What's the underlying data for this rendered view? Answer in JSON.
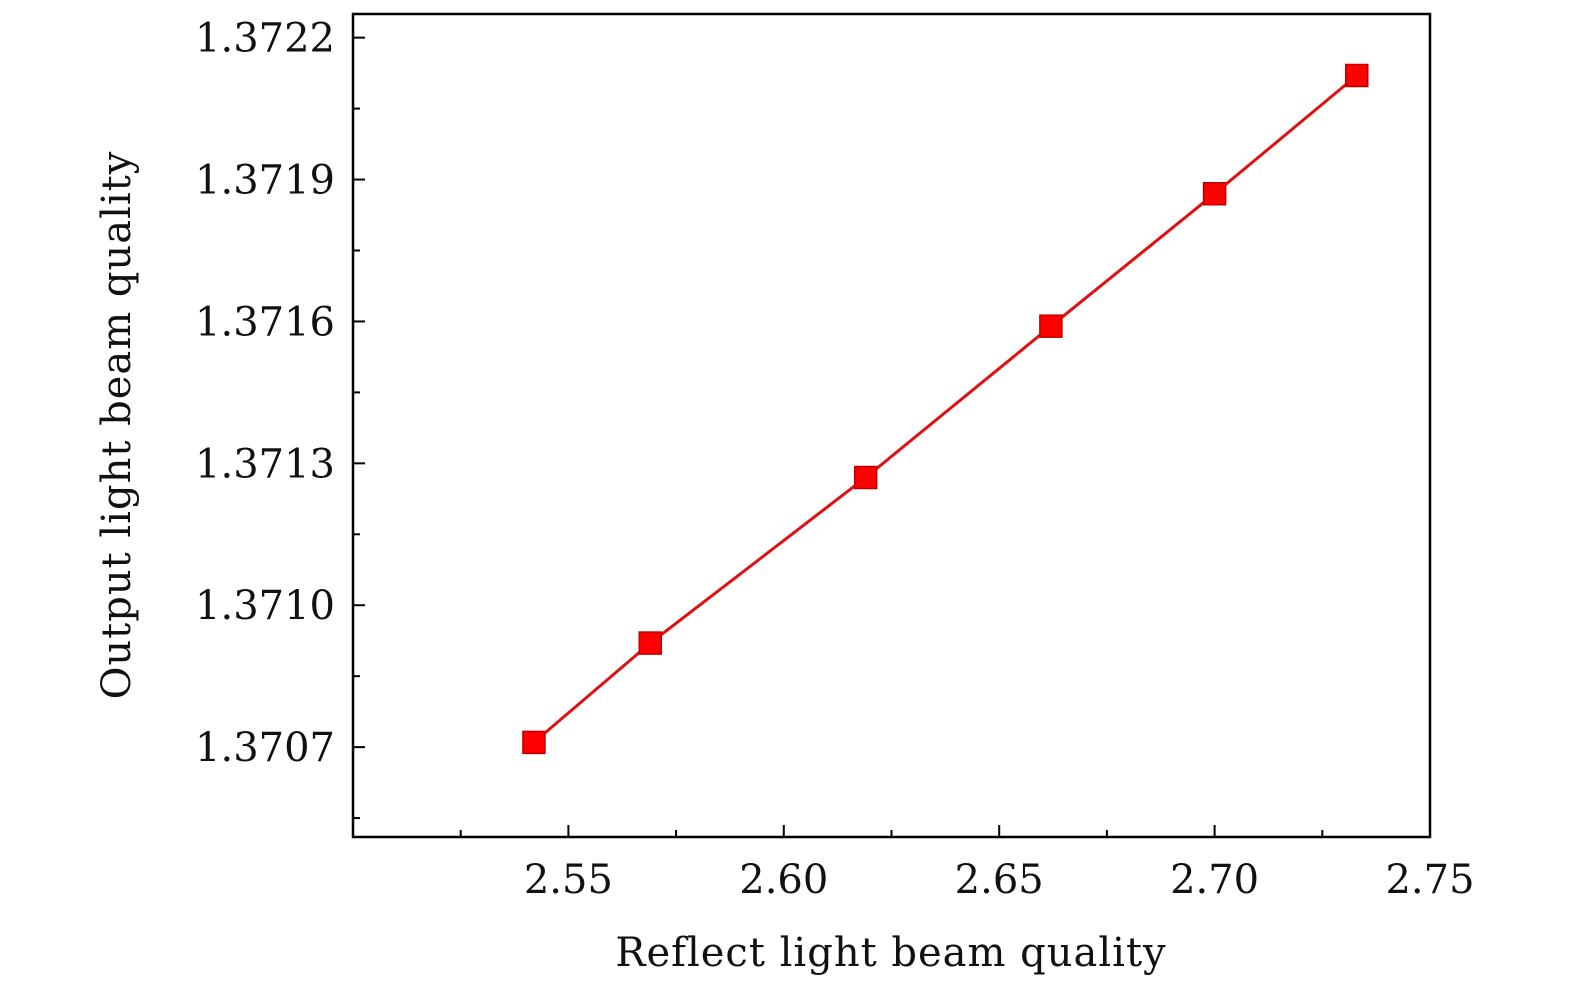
{
  "chart_data": {
    "type": "line",
    "title": "",
    "xlabel": "Reflect light beam quality",
    "ylabel": "Output light beam quality",
    "xlim": [
      2.5,
      2.75
    ],
    "ylim": [
      1.37051,
      1.37225
    ],
    "x_ticks": [
      "2.55",
      "2.60",
      "2.65",
      "2.70",
      "2.75"
    ],
    "x_tick_values": [
      2.55,
      2.6,
      2.65,
      2.7,
      2.75
    ],
    "y_ticks": [
      "1.3707",
      "1.3710",
      "1.3713",
      "1.3716",
      "1.3719",
      "1.3722"
    ],
    "y_tick_values": [
      1.3707,
      1.371,
      1.3713,
      1.3716,
      1.3719,
      1.3722
    ],
    "grid": false,
    "legend": "none",
    "series": [
      {
        "color": "#ff0000",
        "line_color": "#e01010",
        "marker": "square",
        "x": [
          2.542,
          2.569,
          2.619,
          2.662,
          2.7,
          2.733
        ],
        "y": [
          1.37071,
          1.37092,
          1.37127,
          1.37159,
          1.37187,
          1.37212
        ]
      }
    ]
  }
}
